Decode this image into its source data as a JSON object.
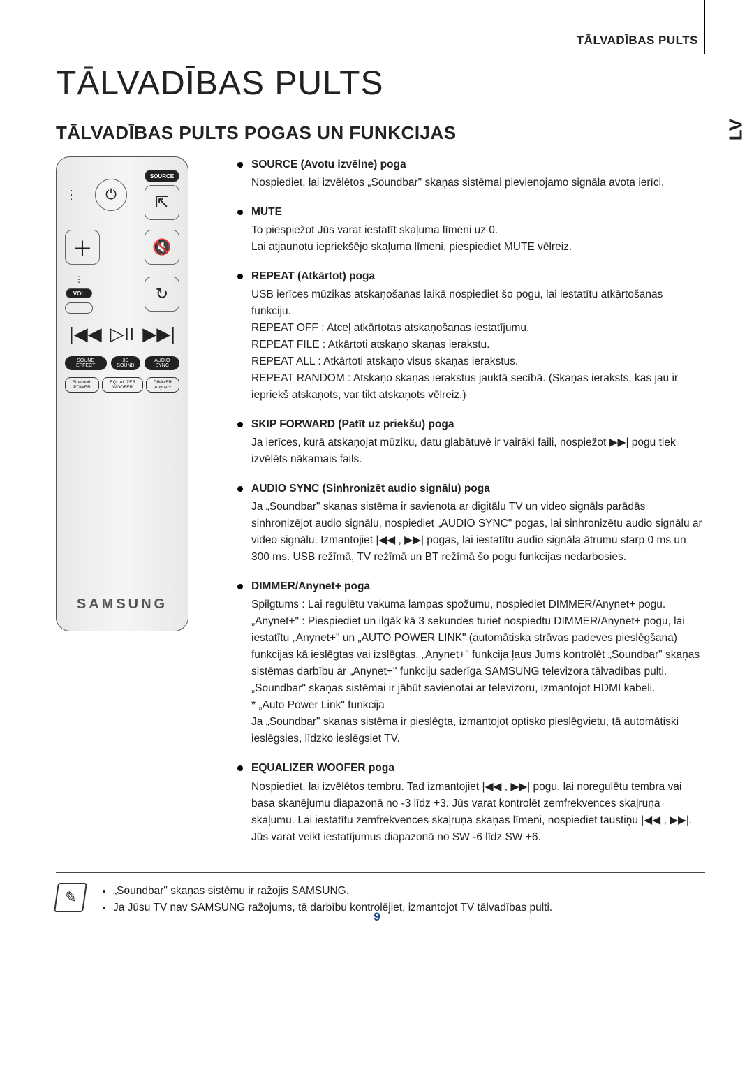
{
  "header": {
    "right_label": "TĀLVADĪBAS PULTS",
    "side_tab": "LV"
  },
  "title": "TĀLVADĪBAS PULTS",
  "subtitle": "TĀLVADĪBAS PULTS POGAS UN FUNKCIJAS",
  "remote": {
    "source_label": "SOURCE",
    "vol_label": "VOL",
    "row_labels": {
      "sound_effect": "SOUND EFFECT",
      "sound_3d": "3D SOUND",
      "audio_sync": "AUDIO SYNC",
      "bt_power": "Bluetooth POWER",
      "eq_woofer": "EQUALIZER WOOFER",
      "dimmer": "DIMMER Anynet+"
    },
    "brand": "SAMSUNG"
  },
  "items": [
    {
      "lead": "SOURCE (Avotu izvēlne) poga",
      "body": "Nospiediet, lai izvēlētos „Soundbar\" skaņas sistēmai pievienojamo signāla avota ierīci."
    },
    {
      "lead": "MUTE",
      "body": "To piespiežot Jūs varat iestatīt skaļuma līmeni uz 0.\nLai atjaunotu iepriekšējo skaļuma līmeni, piespiediet MUTE vēlreiz."
    },
    {
      "lead": "REPEAT (Atkārtot) poga",
      "body": "USB ierīces mūzikas atskaņošanas laikā nospiediet šo pogu, lai iestatītu atkārtošanas funkciju.\nREPEAT OFF : Atceļ atkārtotas atskaņošanas iestatījumu.\nREPEAT FILE : Atkārtoti atskaņo skaņas ierakstu.\nREPEAT ALL : Atkārtoti atskaņo visus skaņas ierakstus.\nREPEAT RANDOM  : Atskaņo skaņas ierakstus jauktā secībā. (Skaņas ieraksts, kas jau ir iepriekš atskaņots, var tikt atskaņots vēlreiz.)"
    },
    {
      "lead": "SKIP FORWARD (Patīt uz priekšu) poga",
      "body": "Ja ierīces, kurā atskaņojat mūziku, datu glabātuvē ir vairāki faili, nospiežot ▶▶| pogu tiek izvēlēts nākamais fails."
    },
    {
      "lead": "AUDIO SYNC (Sinhronizēt audio signālu) poga",
      "body": "Ja „Soundbar\" skaņas sistēma ir savienota ar digitālu TV un video signāls parādās sinhronizējot audio signālu, nospiediet „AUDIO SYNC\" pogas, lai sinhronizētu audio signālu ar video signālu. Izmantojiet |◀◀ , ▶▶| pogas, lai iestatītu audio signāla ātrumu starp 0 ms un 300 ms. USB režīmā, TV režīmā un BT režīmā šo pogu funkcijas nedarbosies."
    },
    {
      "lead": "DIMMER/Anynet+ poga",
      "body": "Spilgtums : Lai regulētu vakuma lampas spožumu, nospiediet DIMMER/Anynet+ pogu.\n„Anynet+\" : Piespiediet un ilgāk kā 3 sekundes turiet nospiedtu DIMMER/Anynet+ pogu, lai iestatītu „Anynet+\" un „AUTO POWER LINK\" (automātiska strāvas padeves pieslēgšana) funkcijas kā ieslēgtas vai izslēgtas. „Anynet+\" funkcija ļaus Jums kontrolēt „Soundbar\" skaņas sistēmas darbību ar „Anynet+\" funkciju saderīga SAMSUNG televizora tālvadības pulti. „Soundbar\" skaņas sistēmai ir jābūt savienotai ar televizoru, izmantojot HDMI kabeli.\n* „Auto Power Link\" funkcija\n  Ja „Soundbar\" skaņas sistēma ir pieslēgta, izmantojot optisko pieslēgvietu, tā automātiski ieslēgsies, līdzko ieslēgsiet TV."
    },
    {
      "lead": "EQUALIZER WOOFER poga",
      "body": "Nospiediet, lai izvēlētos tembru. Tad izmantojiet |◀◀ , ▶▶| pogu, lai noregulētu tembra vai basa skanējumu diapazonā no -3 līdz +3. Jūs varat kontrolēt zemfrekvences skaļruņa skaļumu. Lai iestatītu zemfrekvences skaļruņa skaņas līmeni, nospiediet taustiņu |◀◀ , ▶▶|. Jūs varat veikt iestatījumus diapazonā no SW -6  līdz SW +6."
    }
  ],
  "notes": [
    "„Soundbar\" skaņas sistēmu ir ražojis SAMSUNG.",
    "Ja Jūsu TV nav SAMSUNG ražojums, tā darbību kontrolējiet, izmantojot TV tālvadības pulti."
  ],
  "page_number": "9"
}
